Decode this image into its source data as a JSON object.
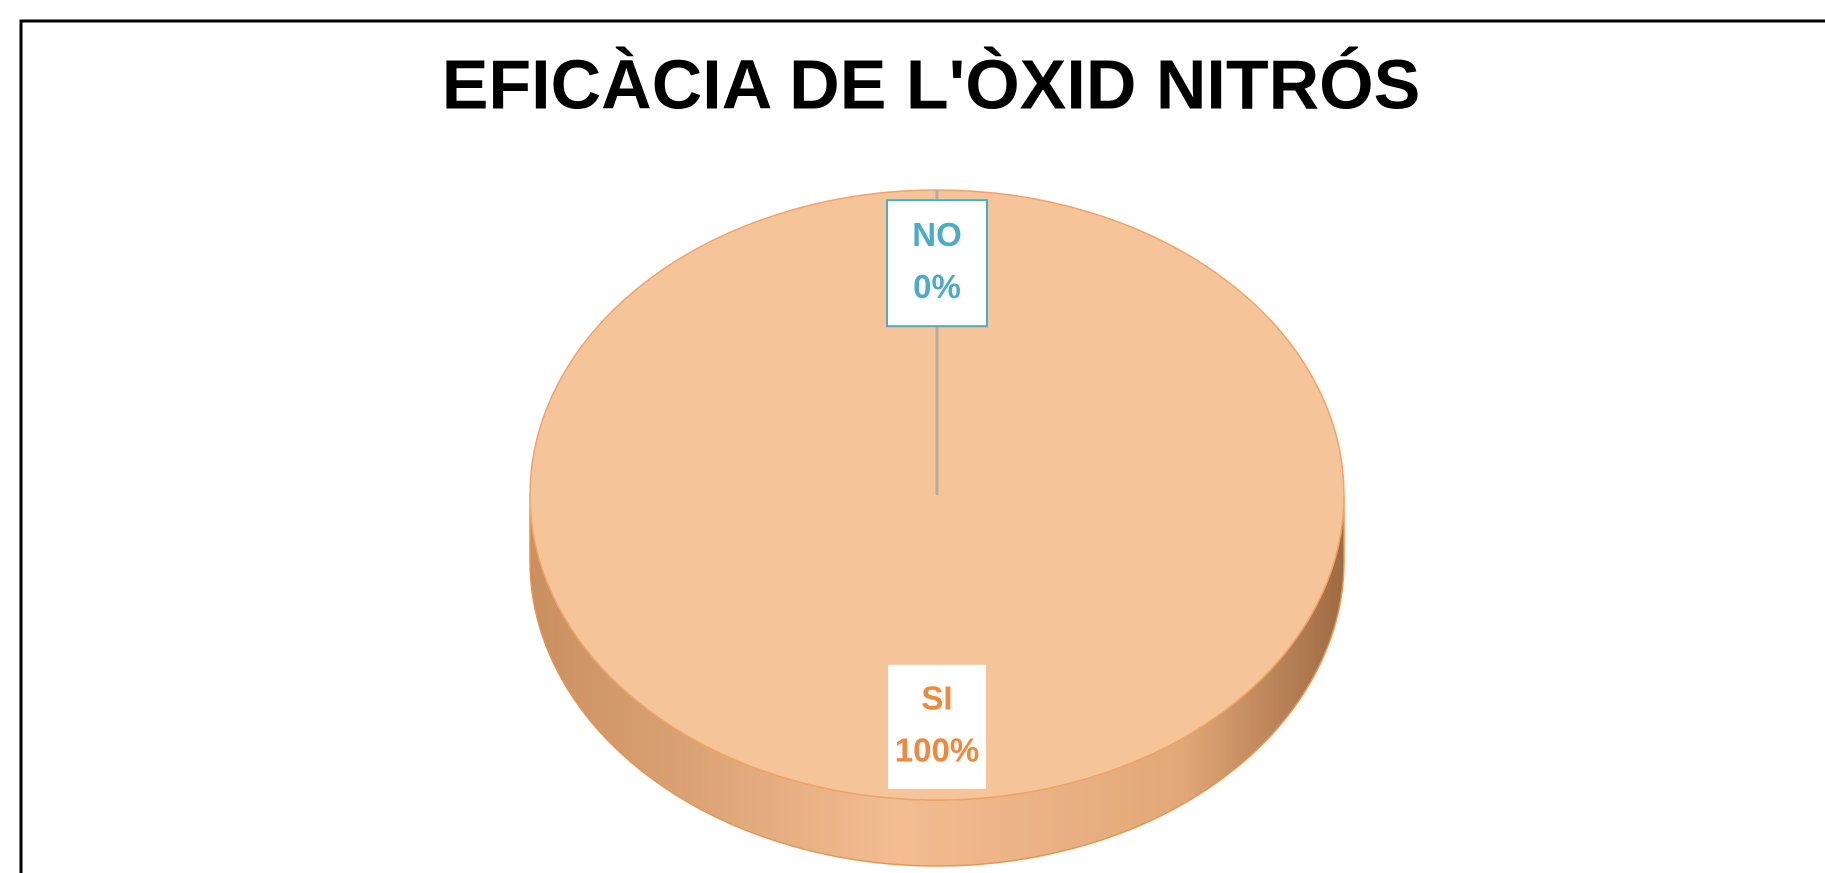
{
  "chart_data": {
    "type": "pie",
    "title": "EFICÀCIA DE L'ÒXID NITRÓS",
    "categories": [
      "SI",
      "NO"
    ],
    "values": [
      100,
      0
    ],
    "value_labels": [
      "100%",
      "0%"
    ],
    "colors": [
      "#f5c499",
      "#4bacc6"
    ],
    "label_colors": [
      "#f0883e",
      "#4bacc6"
    ],
    "three_d": true
  }
}
